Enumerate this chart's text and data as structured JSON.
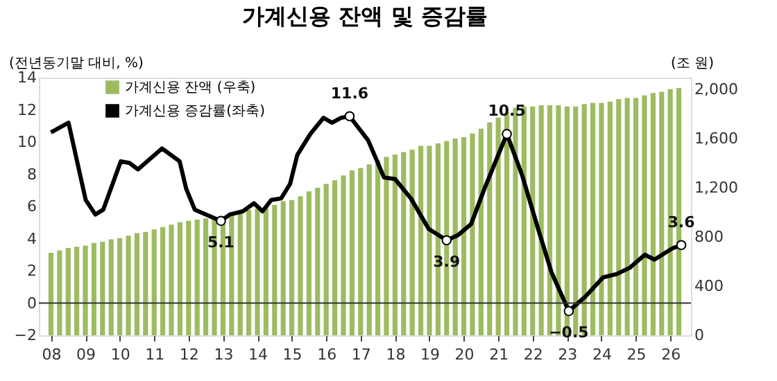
{
  "chart_data": {
    "type": "bar",
    "title": "가계신용 잔액 및 증감률",
    "ylabel": "(전년동기말 대비, %)",
    "y2label": "(조 원)",
    "xlim": [
      2007.85,
      2026.4
    ],
    "xticks": [
      {
        "value": 2008,
        "label": "08"
      },
      {
        "value": 2009,
        "label": "09"
      },
      {
        "value": 2010,
        "label": "10"
      },
      {
        "value": 2011,
        "label": "11"
      },
      {
        "value": 2012,
        "label": "12"
      },
      {
        "value": 2013,
        "label": "13"
      },
      {
        "value": 2014,
        "label": "14"
      },
      {
        "value": 2015,
        "label": "15"
      },
      {
        "value": 2016,
        "label": "16"
      },
      {
        "value": 2017,
        "label": "17"
      },
      {
        "value": 2018,
        "label": "18"
      },
      {
        "value": 2019,
        "label": "19"
      },
      {
        "value": 2020,
        "label": "20"
      },
      {
        "value": 2021,
        "label": "21"
      },
      {
        "value": 2022,
        "label": "22"
      },
      {
        "value": 2023,
        "label": "23"
      },
      {
        "value": 2024,
        "label": "24"
      },
      {
        "value": 2025,
        "label": "25"
      },
      {
        "value": 2026,
        "label": "26"
      }
    ],
    "ylim": [
      -2,
      14
    ],
    "yticks": [
      -2,
      0,
      2,
      4,
      6,
      8,
      10,
      12,
      14
    ],
    "y2lim": [
      0,
      2095
    ],
    "y2ticks": [
      0,
      {
        "value": 400,
        "label": "400"
      },
      {
        "value": 800,
        "label": "800"
      },
      {
        "value": 1200,
        "label": "1,200"
      },
      {
        "value": 1600,
        "label": "1,600"
      },
      {
        "value": 2000,
        "label": "2,000"
      }
    ],
    "legend": "top left",
    "grid": false,
    "ref_lines": [
      {
        "axis": "y",
        "value": 0,
        "color": "#333333"
      }
    ],
    "series": [
      {
        "name": "가계신용 잔액 (우축)",
        "axis": "y2",
        "color": "#9dbb61",
        "x": [
          2008,
          2008.25,
          2008.5,
          2008.75,
          2009,
          2009.25,
          2009.5,
          2009.75,
          2010,
          2010.25,
          2010.5,
          2010.75,
          2011,
          2011.25,
          2011.5,
          2011.75,
          2012,
          2012.25,
          2012.5,
          2012.75,
          2013,
          2013.25,
          2013.5,
          2013.75,
          2014,
          2014.25,
          2014.5,
          2014.75,
          2015,
          2015.25,
          2015.5,
          2015.75,
          2016,
          2016.25,
          2016.5,
          2016.75,
          2017,
          2017.25,
          2017.5,
          2017.75,
          2018,
          2018.25,
          2018.5,
          2018.75,
          2019,
          2019.25,
          2019.5,
          2019.75,
          2020,
          2020.25,
          2020.5,
          2020.75,
          2021,
          2021.25,
          2021.5,
          2021.75,
          2022,
          2022.25,
          2022.5,
          2022.75,
          2023,
          2023.25,
          2023.5,
          2023.75,
          2024,
          2024.25,
          2024.5,
          2024.75,
          2025,
          2025.25,
          2025.5,
          2025.75,
          2026,
          2026.25
        ],
        "values": [
          670,
          690,
          710,
          720,
          730,
          750,
          760,
          780,
          790,
          810,
          830,
          840,
          860,
          880,
          900,
          920,
          930,
          940,
          950,
          960,
          970,
          980,
          1000,
          1020,
          1030,
          1040,
          1060,
          1090,
          1100,
          1130,
          1170,
          1200,
          1230,
          1260,
          1300,
          1340,
          1360,
          1390,
          1420,
          1450,
          1470,
          1490,
          1510,
          1540,
          1540,
          1560,
          1580,
          1600,
          1610,
          1640,
          1680,
          1730,
          1770,
          1810,
          1850,
          1860,
          1860,
          1870,
          1870,
          1870,
          1860,
          1860,
          1880,
          1890,
          1890,
          1900,
          1920,
          1930,
          1930,
          1950,
          1970,
          1980,
          2000,
          2010
        ]
      },
      {
        "name": "가계신용 증감률(좌축)",
        "type": "line",
        "axis": "y",
        "color": "#000000",
        "x": [
          2008.0,
          2008.51,
          2009.01,
          2009.29,
          2009.52,
          2010.03,
          2010.28,
          2010.53,
          2011.23,
          2011.74,
          2011.93,
          2012.18,
          2012.94,
          2013.2,
          2013.58,
          2013.9,
          2014.15,
          2014.4,
          2014.69,
          2014.95,
          2015.16,
          2015.54,
          2015.92,
          2016.17,
          2016.43,
          2016.68,
          2017.22,
          2017.68,
          2018.0,
          2018.46,
          2018.98,
          2019.5,
          2019.82,
          2020.21,
          2020.6,
          2021.25,
          2021.7,
          2022.16,
          2022.55,
          2023.05,
          2023.53,
          2024.05,
          2024.44,
          2024.83,
          2025.26,
          2025.54,
          2026.06,
          2026.32
        ],
        "values": [
          10.6,
          11.2,
          6.4,
          5.5,
          5.8,
          8.8,
          8.7,
          8.3,
          9.6,
          8.8,
          7.1,
          5.8,
          5.1,
          5.5,
          5.7,
          6.2,
          5.7,
          6.4,
          6.5,
          7.4,
          9.2,
          10.5,
          11.5,
          11.2,
          11.5,
          11.6,
          10.1,
          7.8,
          7.7,
          6.5,
          4.6,
          3.9,
          4.2,
          4.9,
          7.1,
          10.5,
          7.9,
          4.6,
          1.9,
          -0.5,
          0.4,
          1.6,
          1.8,
          2.2,
          3.0,
          2.7,
          3.4,
          3.6
        ],
        "value_labels": [
          null,
          null,
          null,
          null,
          null,
          null,
          null,
          null,
          null,
          null,
          null,
          null,
          "5.1",
          null,
          null,
          null,
          null,
          null,
          null,
          null,
          null,
          null,
          null,
          null,
          null,
          "11.6",
          null,
          null,
          null,
          null,
          null,
          "3.9",
          null,
          null,
          null,
          "10.5",
          null,
          null,
          null,
          "−0.5",
          null,
          null,
          null,
          null,
          null,
          null,
          null,
          "3.6"
        ]
      }
    ]
  }
}
